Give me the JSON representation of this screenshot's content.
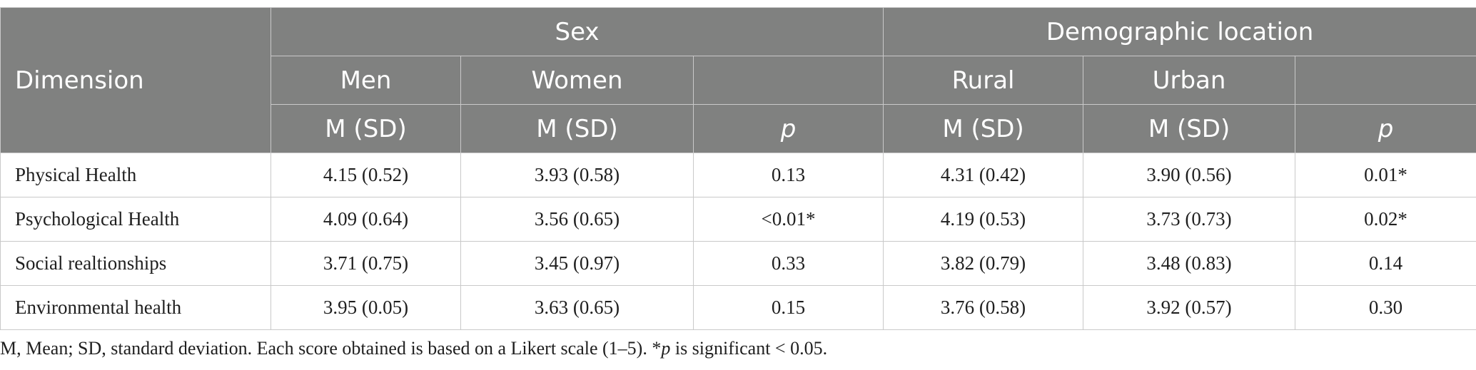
{
  "table": {
    "header": {
      "dimension": "Dimension",
      "groups": {
        "sex": "Sex",
        "location": "Demographic location"
      },
      "subgroups": {
        "men": "Men",
        "women": "Women",
        "rural": "Rural",
        "urban": "Urban"
      },
      "stat_labels": {
        "m_sd": "M (SD)",
        "p": "p"
      }
    },
    "rows": [
      {
        "dimension": "Physical Health",
        "men": "4.15 (0.52)",
        "women": "3.93 (0.58)",
        "p_sex": "0.13",
        "rural": "4.31 (0.42)",
        "urban": "3.90 (0.56)",
        "p_location": "0.01*"
      },
      {
        "dimension": "Psychological Health",
        "men": "4.09 (0.64)",
        "women": "3.56 (0.65)",
        "p_sex": "<0.01*",
        "rural": "4.19 (0.53)",
        "urban": "3.73 (0.73)",
        "p_location": "0.02*"
      },
      {
        "dimension": "Social realtionships",
        "men": "3.71 (0.75)",
        "women": "3.45 (0.97)",
        "p_sex": "0.33",
        "rural": "3.82 (0.79)",
        "urban": "3.48 (0.83)",
        "p_location": "0.14"
      },
      {
        "dimension": "Environmental health",
        "men": "3.95 (0.05)",
        "women": "3.63 (0.65)",
        "p_sex": "0.15",
        "rural": "3.76 (0.58)",
        "urban": "3.92 (0.57)",
        "p_location": "0.30"
      }
    ]
  },
  "footnote": {
    "part1": "M, Mean; SD, standard deviation. Each score obtained is based on a Likert scale (1–5). *",
    "p": "p",
    "part2": " is significant < 0.05."
  },
  "colors": {
    "header_bg": "#808180",
    "header_text": "#ffffff",
    "grid": "#c9c9c9"
  }
}
